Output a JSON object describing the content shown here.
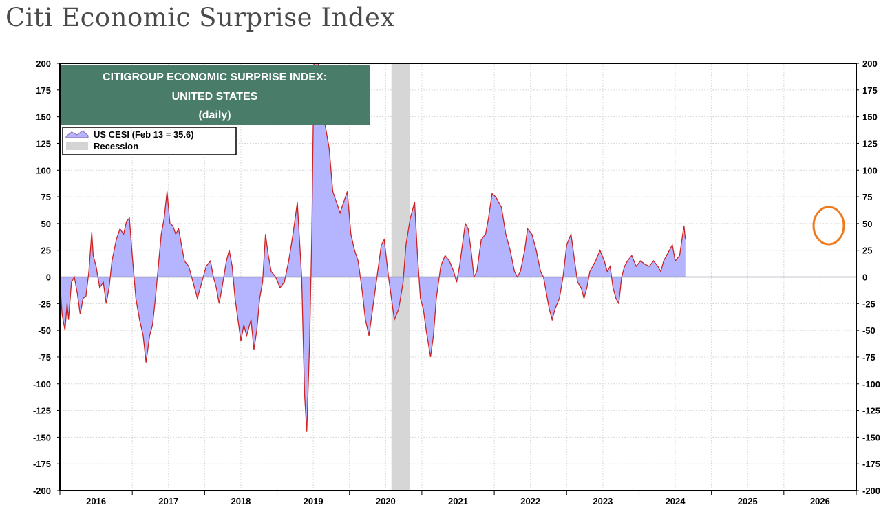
{
  "page": {
    "title": "Citi Economic Surprise Index"
  },
  "chart_data": {
    "type": "area",
    "banner": {
      "line1": "CITIGROUP ECONOMIC SURPRISE INDEX:",
      "line2": "UNITED STATES",
      "line3": "(daily)",
      "color": "#4a7c6a"
    },
    "legend": {
      "position": "top-left",
      "entries": [
        {
          "label": "US CESI (Feb 13 = 35.6)",
          "type": "area",
          "color": "#b3b3ff"
        },
        {
          "label": "Recession",
          "type": "band",
          "color": "#d4d4d4"
        }
      ]
    },
    "colors": {
      "fill": "#b4b4ff",
      "line": "#cc2222",
      "recession": "#d6d6d6",
      "zero_line": "#8a8aa8",
      "highlight_circle": "#ee7a1e"
    },
    "y_ticks": [
      "200",
      "175",
      "150",
      "125",
      "100",
      "75",
      "50",
      "25",
      "0",
      "-25",
      "-50",
      "-75",
      "-100",
      "-125",
      "-150",
      "-175",
      "-200"
    ],
    "ylim": [
      -200,
      200
    ],
    "x_tick_labels": [
      "2016",
      "2017",
      "2018",
      "2019",
      "2020",
      "2021",
      "2022",
      "2023",
      "2024",
      "2025",
      "2026"
    ],
    "xlim": [
      2015.5,
      2026.5
    ],
    "grid": true,
    "recession": {
      "start": 2020.08,
      "end": 2020.33
    },
    "highlight": {
      "x": 2026.12,
      "y": 48
    },
    "series": [
      {
        "name": "US CESI (Feb 13 = 35.6)",
        "points": [
          [
            2015.5,
            -5
          ],
          [
            2015.53,
            -35
          ],
          [
            2015.57,
            -50
          ],
          [
            2015.6,
            -25
          ],
          [
            2015.62,
            -40
          ],
          [
            2015.66,
            -5
          ],
          [
            2015.7,
            0
          ],
          [
            2015.74,
            -15
          ],
          [
            2015.78,
            -35
          ],
          [
            2015.82,
            -20
          ],
          [
            2015.86,
            -18
          ],
          [
            2015.9,
            5
          ],
          [
            2015.94,
            42
          ],
          [
            2015.96,
            20
          ],
          [
            2016.0,
            10
          ],
          [
            2016.05,
            -10
          ],
          [
            2016.1,
            -5
          ],
          [
            2016.14,
            -25
          ],
          [
            2016.18,
            -10
          ],
          [
            2016.22,
            15
          ],
          [
            2016.28,
            35
          ],
          [
            2016.33,
            45
          ],
          [
            2016.38,
            40
          ],
          [
            2016.42,
            52
          ],
          [
            2016.46,
            55
          ],
          [
            2016.5,
            20
          ],
          [
            2016.55,
            -20
          ],
          [
            2016.6,
            -40
          ],
          [
            2016.65,
            -55
          ],
          [
            2016.69,
            -80
          ],
          [
            2016.74,
            -55
          ],
          [
            2016.78,
            -45
          ],
          [
            2016.82,
            -20
          ],
          [
            2016.86,
            10
          ],
          [
            2016.9,
            40
          ],
          [
            2016.94,
            55
          ],
          [
            2016.98,
            80
          ],
          [
            2017.02,
            50
          ],
          [
            2017.06,
            48
          ],
          [
            2017.1,
            40
          ],
          [
            2017.14,
            45
          ],
          [
            2017.18,
            30
          ],
          [
            2017.22,
            15
          ],
          [
            2017.28,
            10
          ],
          [
            2017.34,
            -5
          ],
          [
            2017.4,
            -20
          ],
          [
            2017.46,
            -5
          ],
          [
            2017.52,
            10
          ],
          [
            2017.58,
            15
          ],
          [
            2017.62,
            0
          ],
          [
            2017.66,
            -10
          ],
          [
            2017.7,
            -25
          ],
          [
            2017.74,
            -10
          ],
          [
            2017.8,
            15
          ],
          [
            2017.84,
            25
          ],
          [
            2017.88,
            10
          ],
          [
            2017.92,
            -20
          ],
          [
            2017.96,
            -40
          ],
          [
            2018.0,
            -60
          ],
          [
            2018.04,
            -45
          ],
          [
            2018.08,
            -55
          ],
          [
            2018.14,
            -40
          ],
          [
            2018.18,
            -68
          ],
          [
            2018.22,
            -50
          ],
          [
            2018.26,
            -20
          ],
          [
            2018.3,
            -5
          ],
          [
            2018.34,
            40
          ],
          [
            2018.38,
            20
          ],
          [
            2018.42,
            5
          ],
          [
            2018.48,
            0
          ],
          [
            2018.54,
            -10
          ],
          [
            2018.6,
            -5
          ],
          [
            2018.66,
            15
          ],
          [
            2018.72,
            40
          ],
          [
            2018.78,
            70
          ],
          [
            2018.84,
            0
          ],
          [
            2018.88,
            -110
          ],
          [
            2018.91,
            -145
          ],
          [
            2018.95,
            -60
          ],
          [
            2018.98,
            40
          ],
          [
            2019.01,
            200
          ],
          [
            2019.07,
            200
          ],
          [
            2019.12,
            160
          ],
          [
            2019.17,
            140
          ],
          [
            2019.22,
            120
          ],
          [
            2019.27,
            80
          ],
          [
            2019.32,
            70
          ],
          [
            2019.37,
            60
          ],
          [
            2019.42,
            70
          ],
          [
            2019.47,
            80
          ],
          [
            2019.52,
            40
          ],
          [
            2019.57,
            25
          ],
          [
            2019.62,
            15
          ],
          [
            2019.67,
            -10
          ],
          [
            2019.72,
            -40
          ],
          [
            2019.77,
            -55
          ],
          [
            2019.82,
            -30
          ],
          [
            2019.86,
            -10
          ],
          [
            2019.9,
            10
          ],
          [
            2019.94,
            30
          ],
          [
            2019.98,
            35
          ],
          [
            2020.04,
            0
          ],
          [
            2020.08,
            -20
          ],
          [
            2020.12,
            -40
          ],
          [
            2020.18,
            -30
          ],
          [
            2020.24,
            -5
          ],
          [
            2020.28,
            30
          ],
          [
            2020.34,
            55
          ],
          [
            2020.4,
            70
          ],
          [
            2020.44,
            20
          ],
          [
            2020.48,
            -20
          ],
          [
            2020.52,
            -30
          ],
          [
            2020.56,
            -50
          ],
          [
            2020.62,
            -75
          ],
          [
            2020.66,
            -55
          ],
          [
            2020.7,
            -20
          ],
          [
            2020.76,
            10
          ],
          [
            2020.82,
            20
          ],
          [
            2020.88,
            15
          ],
          [
            2020.94,
            5
          ],
          [
            2020.98,
            -5
          ],
          [
            2021.02,
            10
          ],
          [
            2021.06,
            30
          ],
          [
            2021.1,
            50
          ],
          [
            2021.14,
            45
          ],
          [
            2021.18,
            25
          ],
          [
            2021.22,
            0
          ],
          [
            2021.26,
            5
          ],
          [
            2021.32,
            35
          ],
          [
            2021.38,
            40
          ],
          [
            2021.42,
            55
          ],
          [
            2021.47,
            78
          ],
          [
            2021.52,
            75
          ],
          [
            2021.56,
            70
          ],
          [
            2021.6,
            65
          ],
          [
            2021.66,
            40
          ],
          [
            2021.72,
            25
          ],
          [
            2021.78,
            5
          ],
          [
            2021.82,
            0
          ],
          [
            2021.86,
            5
          ],
          [
            2021.92,
            25
          ],
          [
            2021.96,
            45
          ],
          [
            2022.02,
            40
          ],
          [
            2022.08,
            25
          ],
          [
            2022.14,
            5
          ],
          [
            2022.18,
            0
          ],
          [
            2022.22,
            -15
          ],
          [
            2022.26,
            -30
          ],
          [
            2022.3,
            -40
          ],
          [
            2022.34,
            -30
          ],
          [
            2022.4,
            -20
          ],
          [
            2022.45,
            0
          ],
          [
            2022.5,
            30
          ],
          [
            2022.56,
            40
          ],
          [
            2022.6,
            20
          ],
          [
            2022.65,
            -5
          ],
          [
            2022.7,
            -10
          ],
          [
            2022.74,
            -20
          ],
          [
            2022.78,
            -10
          ],
          [
            2022.82,
            5
          ],
          [
            2022.86,
            10
          ],
          [
            2022.9,
            15
          ],
          [
            2022.96,
            25
          ],
          [
            2023.02,
            15
          ],
          [
            2023.06,
            5
          ],
          [
            2023.1,
            10
          ],
          [
            2023.14,
            -10
          ],
          [
            2023.18,
            -20
          ],
          [
            2023.22,
            -25
          ],
          [
            2023.26,
            0
          ],
          [
            2023.3,
            10
          ],
          [
            2023.34,
            15
          ],
          [
            2023.4,
            20
          ],
          [
            2023.46,
            10
          ],
          [
            2023.52,
            15
          ],
          [
            2023.58,
            12
          ],
          [
            2023.64,
            10
          ],
          [
            2023.7,
            15
          ],
          [
            2023.76,
            10
          ],
          [
            2023.8,
            5
          ],
          [
            2023.84,
            15
          ],
          [
            2023.88,
            20
          ],
          [
            2023.92,
            25
          ],
          [
            2023.96,
            30
          ],
          [
            2024.0,
            15
          ],
          [
            2024.06,
            20
          ],
          [
            2024.12,
            48
          ],
          [
            2024.14,
            35
          ]
        ]
      }
    ]
  }
}
